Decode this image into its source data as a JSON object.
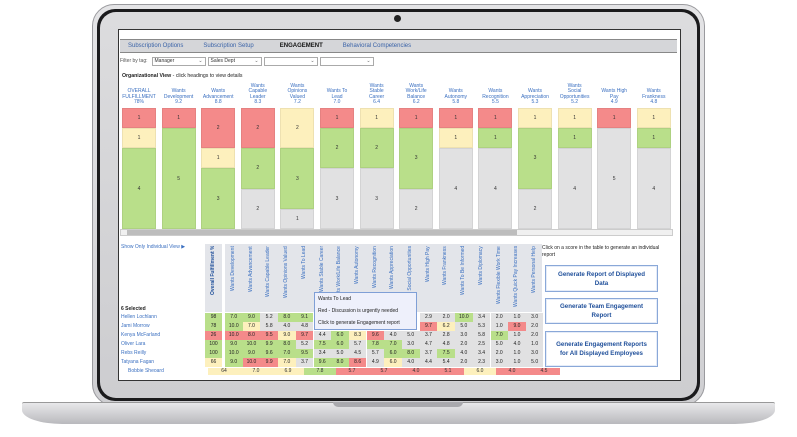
{
  "nav": {
    "tabs": [
      {
        "label": "Subscription Options",
        "active": false
      },
      {
        "label": "Subscription Setup",
        "active": false
      },
      {
        "label": "ENGAGEMENT",
        "active": true
      },
      {
        "label": "Behavioral Competencies",
        "active": false
      }
    ]
  },
  "filters": {
    "label": "Filter by tag:",
    "selects": [
      "Manager",
      "Sales Dept",
      "",
      ""
    ]
  },
  "org_view": {
    "title_bold": "Organizational View",
    "title_rest": " - click headings to view details"
  },
  "colors": {
    "red": "#f48a8a",
    "yellow": "#fdf0bd",
    "green": "#b9df8a",
    "gray": "#e1e1e2",
    "link": "#3a6fc0"
  },
  "summary_columns": [
    {
      "lines": [
        "OVERALL",
        "FULFILLMENT",
        "78%"
      ],
      "segments": [
        [
          "r",
          1
        ],
        [
          "y",
          1
        ],
        [
          "g",
          4
        ]
      ]
    },
    {
      "lines": [
        "Wants",
        "Development",
        "9.2"
      ],
      "segments": [
        [
          "r",
          1
        ],
        [
          "g",
          5
        ]
      ]
    },
    {
      "lines": [
        "Wants",
        "Advancement",
        "8.8"
      ],
      "segments": [
        [
          "r",
          2
        ],
        [
          "y",
          1
        ],
        [
          "g",
          3
        ]
      ]
    },
    {
      "lines": [
        "Wants",
        "Capable",
        "Leader",
        "8.3"
      ],
      "segments": [
        [
          "r",
          2
        ],
        [
          "g",
          2
        ],
        [
          "n",
          2
        ]
      ]
    },
    {
      "lines": [
        "Wants",
        "Opinions",
        "Valued",
        "7.2"
      ],
      "segments": [
        [
          "y",
          2
        ],
        [
          "g",
          3
        ],
        [
          "n",
          1
        ]
      ]
    },
    {
      "lines": [
        "Wants To",
        "Lead",
        "7.0"
      ],
      "segments": [
        [
          "r",
          1
        ],
        [
          "g",
          2
        ],
        [
          "n",
          3
        ]
      ]
    },
    {
      "lines": [
        "Wants",
        "Stable",
        "Career",
        "6.4"
      ],
      "segments": [
        [
          "y",
          1
        ],
        [
          "g",
          2
        ],
        [
          "n",
          3
        ]
      ]
    },
    {
      "lines": [
        "Wants",
        "Work/Life",
        "Balance",
        "6.2"
      ],
      "segments": [
        [
          "r",
          1
        ],
        [
          "g",
          3
        ],
        [
          "n",
          2
        ]
      ]
    },
    {
      "lines": [
        "Wants",
        "Autonomy",
        "5.8"
      ],
      "segments": [
        [
          "r",
          1
        ],
        [
          "y",
          1
        ],
        [
          "n",
          4
        ]
      ]
    },
    {
      "lines": [
        "Wants",
        "Recognition",
        "5.5"
      ],
      "segments": [
        [
          "r",
          1
        ],
        [
          "g",
          1
        ],
        [
          "n",
          4
        ]
      ]
    },
    {
      "lines": [
        "Wants",
        "Appreciation",
        "5.3"
      ],
      "segments": [
        [
          "y",
          1
        ],
        [
          "g",
          3
        ],
        [
          "n",
          2
        ]
      ]
    },
    {
      "lines": [
        "Wants",
        "Social",
        "Opportunities",
        "5.2"
      ],
      "segments": [
        [
          "y",
          1
        ],
        [
          "g",
          1
        ],
        [
          "n",
          4
        ]
      ]
    },
    {
      "lines": [
        "Wants High",
        "Pay",
        "4.9"
      ],
      "segments": [
        [
          "r",
          1
        ],
        [
          "n",
          5
        ]
      ]
    },
    {
      "lines": [
        "Wants",
        "Frankness",
        "4.8"
      ],
      "segments": [
        [
          "y",
          1
        ],
        [
          "g",
          1
        ],
        [
          "n",
          4
        ]
      ]
    }
  ],
  "individual": {
    "toggle_link": "Show Only Individual View ▶",
    "selected_count": "6 Selected",
    "headers": [
      "Overall Fulfillment %",
      "Wants Development",
      "Wants Advancement",
      "Wants Capable Leader",
      "Wants Opinions Valued",
      "Wants To Lead",
      "Wants Stable Career",
      "Wants Work/Life Balance",
      "Wants Autonomy",
      "Wants Recognition",
      "Wants Appreciation",
      "Wants Social Opportunities",
      "Wants High Pay",
      "Wants Frankness",
      "Wants To Be Informed",
      "Wants Diplomacy",
      "Wants Flexible Work Time",
      "Wants Quick Pay Increases",
      "Wants Personal Help"
    ],
    "rows": [
      {
        "name": "Hellen Lochlann",
        "cells": [
          [
            "98",
            "g"
          ],
          [
            "7.0",
            "g"
          ],
          [
            "9.0",
            "g"
          ],
          [
            "5.2",
            "n"
          ],
          [
            "8.0",
            "g"
          ],
          [
            "9.1",
            "g"
          ],
          [
            "",
            ""
          ],
          [
            "",
            ""
          ],
          [
            "",
            ""
          ],
          [
            "",
            ""
          ],
          [
            "",
            ""
          ],
          [
            "",
            ""
          ],
          [
            "2.9",
            "n"
          ],
          [
            "2.0",
            "n"
          ],
          [
            "10.0",
            "g"
          ],
          [
            "3.4",
            "n"
          ],
          [
            "2.0",
            "n"
          ],
          [
            "1.0",
            "n"
          ],
          [
            "3.0",
            "n"
          ]
        ]
      },
      {
        "name": "Jami Morrow",
        "cells": [
          [
            "78",
            "g"
          ],
          [
            "10.0",
            "g"
          ],
          [
            "7.0",
            "y"
          ],
          [
            "5.8",
            "n"
          ],
          [
            "4.0",
            "n"
          ],
          [
            "4.8",
            "n"
          ],
          [
            "",
            ""
          ],
          [
            "",
            ""
          ],
          [
            "",
            ""
          ],
          [
            "",
            ""
          ],
          [
            "",
            ""
          ],
          [
            "",
            ""
          ],
          [
            "9.7",
            "r"
          ],
          [
            "6.2",
            "y"
          ],
          [
            "5.0",
            "n"
          ],
          [
            "5.3",
            "n"
          ],
          [
            "1.0",
            "n"
          ],
          [
            "9.0",
            "r"
          ],
          [
            "2.0",
            "n"
          ]
        ]
      },
      {
        "name": "Kenya McFarland",
        "cells": [
          [
            "26",
            "r"
          ],
          [
            "10.0",
            "r"
          ],
          [
            "8.0",
            "r"
          ],
          [
            "9.5",
            "r"
          ],
          [
            "9.0",
            "y"
          ],
          [
            "9.7",
            "r"
          ],
          [
            "4.4",
            "n"
          ],
          [
            "6.0",
            "g"
          ],
          [
            "8.3",
            "y"
          ],
          [
            "9.6",
            "r"
          ],
          [
            "4.0",
            "n"
          ],
          [
            "5.0",
            "n"
          ],
          [
            "3.7",
            "n"
          ],
          [
            "2.8",
            "n"
          ],
          [
            "3.0",
            "n"
          ],
          [
            "5.8",
            "n"
          ],
          [
            "7.0",
            "g"
          ],
          [
            "1.0",
            "n"
          ],
          [
            "2.0",
            "n"
          ]
        ]
      },
      {
        "name": "Oliver Lara",
        "cells": [
          [
            "100",
            "g"
          ],
          [
            "9.0",
            "g"
          ],
          [
            "10.0",
            "g"
          ],
          [
            "9.9",
            "g"
          ],
          [
            "8.0",
            "g"
          ],
          [
            "5.2",
            "n"
          ],
          [
            "7.5",
            "g"
          ],
          [
            "6.0",
            "g"
          ],
          [
            "5.7",
            "n"
          ],
          [
            "7.8",
            "g"
          ],
          [
            "7.0",
            "g"
          ],
          [
            "3.0",
            "n"
          ],
          [
            "4.7",
            "n"
          ],
          [
            "4.8",
            "n"
          ],
          [
            "2.0",
            "n"
          ],
          [
            "2.5",
            "n"
          ],
          [
            "5.0",
            "n"
          ],
          [
            "4.0",
            "n"
          ],
          [
            "1.0",
            "n"
          ]
        ]
      },
      {
        "name": "Rebs Reilly",
        "cells": [
          [
            "100",
            "g"
          ],
          [
            "10.0",
            "g"
          ],
          [
            "9.0",
            "g"
          ],
          [
            "9.6",
            "g"
          ],
          [
            "7.0",
            "g"
          ],
          [
            "9.5",
            "g"
          ],
          [
            "3.4",
            "n"
          ],
          [
            "5.0",
            "n"
          ],
          [
            "4.5",
            "n"
          ],
          [
            "5.7",
            "n"
          ],
          [
            "6.0",
            "g"
          ],
          [
            "8.0",
            "g"
          ],
          [
            "3.7",
            "n"
          ],
          [
            "7.5",
            "g"
          ],
          [
            "4.0",
            "n"
          ],
          [
            "3.4",
            "n"
          ],
          [
            "2.0",
            "n"
          ],
          [
            "1.0",
            "n"
          ],
          [
            "3.0",
            "n"
          ]
        ]
      },
      {
        "name": "Tatyana Fagan",
        "cells": [
          [
            "66",
            "y"
          ],
          [
            "9.0",
            "g"
          ],
          [
            "10.0",
            "r"
          ],
          [
            "9.9",
            "r"
          ],
          [
            "7.0",
            "y"
          ],
          [
            "3.7",
            "n"
          ],
          [
            "9.6",
            "g"
          ],
          [
            "8.0",
            "g"
          ],
          [
            "8.6",
            "r"
          ],
          [
            "4.9",
            "n"
          ],
          [
            "6.0",
            "y"
          ],
          [
            "4.0",
            "n"
          ],
          [
            "4.4",
            "n"
          ],
          [
            "5.4",
            "n"
          ],
          [
            "2.0",
            "n"
          ],
          [
            "2.3",
            "n"
          ],
          [
            "3.0",
            "n"
          ],
          [
            "1.0",
            "n"
          ],
          [
            "5.0",
            "n"
          ]
        ]
      }
    ],
    "summary_row": {
      "name": "Bobbie Sheoard",
      "cells": [
        [
          "64",
          "y"
        ],
        [
          "7.0",
          "y"
        ],
        [
          "6.9",
          "y"
        ],
        [
          "7.8",
          "g"
        ],
        [
          "5.7",
          "r"
        ],
        [
          "5.7",
          "r"
        ],
        [
          "4.0",
          "r"
        ],
        [
          "5.1",
          "r"
        ],
        [
          "6.0",
          "y"
        ],
        [
          "4.0",
          "r"
        ],
        [
          "4.5",
          "r"
        ]
      ]
    }
  },
  "tooltip": {
    "title": "Wants To Lead",
    "line1": "Red - Discussion is urgently needed",
    "line2": "Click to generate Engagement report"
  },
  "side": {
    "hint": "Click on a score in the table to generate an individual report",
    "buttons": [
      "Generate Report of Displayed Data",
      "Generate Team Engagement Report",
      "Generate Engagement Reports for All Displayed Employees"
    ]
  }
}
